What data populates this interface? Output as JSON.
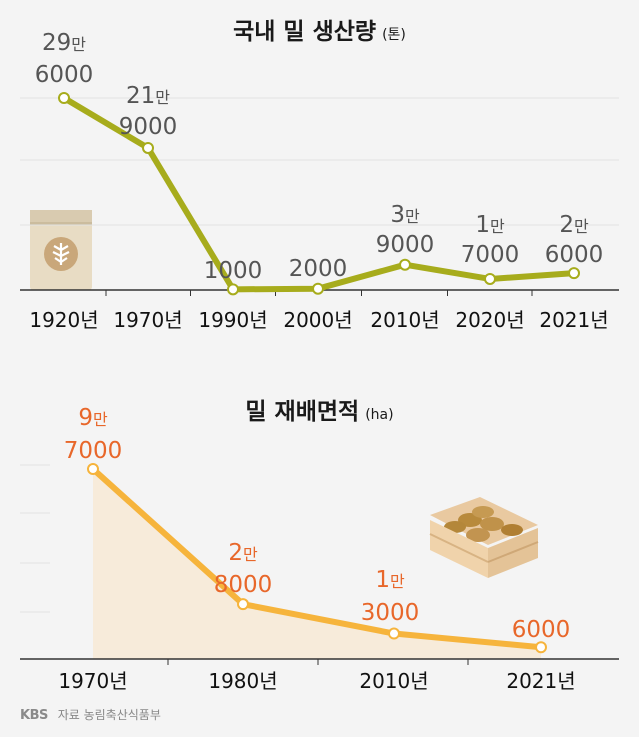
{
  "chart_data": [
    {
      "type": "line",
      "title": "국내 밀 생산량",
      "unit": "(톤)",
      "categories": [
        "1920년",
        "1970년",
        "1990년",
        "2000년",
        "2010년",
        "2020년",
        "2021년"
      ],
      "values": [
        296000,
        219000,
        1000,
        2000,
        39000,
        17000,
        26000
      ],
      "label_lines": [
        [
          "29만",
          "6000"
        ],
        [
          "21만",
          "9000"
        ],
        [
          "",
          "1000"
        ],
        [
          "",
          "2000"
        ],
        [
          "3만",
          "9000"
        ],
        [
          "1만",
          "7000"
        ],
        [
          "2만",
          "6000"
        ]
      ],
      "ylim": [
        0,
        296000
      ],
      "grid": true,
      "color": "#a7ac1c"
    },
    {
      "type": "area",
      "title": "밀 재배면적",
      "unit": "(ha)",
      "categories": [
        "1970년",
        "1980년",
        "2010년",
        "2021년"
      ],
      "values": [
        97000,
        28000,
        13000,
        6000
      ],
      "label_lines": [
        [
          "9만",
          "7000"
        ],
        [
          "2만",
          "8000"
        ],
        [
          "1만",
          "3000"
        ],
        [
          "",
          "6000"
        ]
      ],
      "ylim": [
        0,
        97000
      ],
      "grid": true,
      "color": "#f6b43c",
      "label_color": "#e8672a"
    }
  ],
  "footer": {
    "logo": "KBS",
    "source": "자료 농림축산식품부"
  }
}
